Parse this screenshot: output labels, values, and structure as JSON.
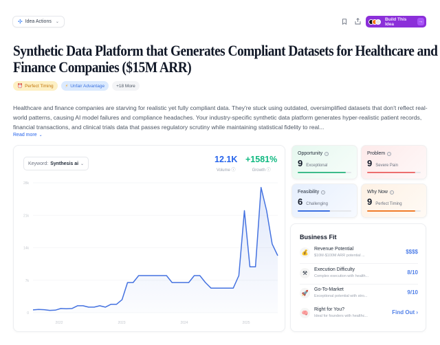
{
  "topbar": {
    "idea_actions_label": "Idea Actions",
    "build_button_label": "Build This Idea"
  },
  "title": "Synthetic Data Platform that Generates Compliant Datasets for Healthcare and Finance Companies ($15M ARR)",
  "tags": [
    {
      "icon": "alarm-clock-icon",
      "label": "Perfect Timing"
    },
    {
      "icon": "lightning-icon",
      "label": "Unfair Advantage"
    },
    {
      "label": "+18 More"
    }
  ],
  "description": "Healthcare and finance companies are starving for realistic yet fully compliant data. They're stuck using outdated, oversimplified datasets that don't reflect real-world patterns, causing AI model failures and compliance headaches. Your industry-specific synthetic data platform generates hyper-realistic patient records, financial transactions, and clinical trials data that passes regulatory scrutiny while maintaining statistical fidelity to real...",
  "read_more_label": "Read more",
  "trend": {
    "keyword_label": "Keyword:",
    "keyword_value": "Synthesis ai",
    "volume_value": "12.1K",
    "volume_label": "Volume",
    "growth_value": "+1581%",
    "growth_label": "Growth",
    "colors": {
      "volume": "#2563eb",
      "growth": "#10b981",
      "line": "#4472e0"
    }
  },
  "chart_data": {
    "type": "area",
    "title": "Search trend for \"Synthesis ai\"",
    "xlabel": "",
    "ylabel": "",
    "ylim": [
      0,
      28000
    ],
    "yticks": [
      "0",
      "7k",
      "14k",
      "21k",
      "28k"
    ],
    "xticks": [
      "2022",
      "2023",
      "2024",
      "2025"
    ],
    "grid": true,
    "legend": "none",
    "values": [
      600,
      700,
      650,
      500,
      550,
      900,
      850,
      900,
      1500,
      1500,
      1200,
      1200,
      1500,
      1200,
      1800,
      1800,
      2800,
      6500,
      6500,
      8000,
      8000,
      8000,
      8000,
      8000,
      8000,
      6500,
      6500,
      6500,
      6500,
      8000,
      8000,
      6500,
      5300,
      5300,
      5300,
      5300,
      5300,
      8000,
      22000,
      9900,
      9900,
      27000,
      22000,
      14800,
      12300
    ]
  },
  "scores": [
    {
      "name": "Opportunity",
      "value": "9",
      "label": "Exceptional",
      "fill_pct": 90,
      "color": "#3dbb8a"
    },
    {
      "name": "Problem",
      "value": "9",
      "label": "Severe Pain",
      "fill_pct": 90,
      "color": "#ec6f6f"
    },
    {
      "name": "Feasibility",
      "value": "6",
      "label": "Challenging",
      "fill_pct": 60,
      "color": "#3b6fe0"
    },
    {
      "name": "Why Now",
      "value": "9",
      "label": "Perfect Timing",
      "fill_pct": 90,
      "color": "#f07c2a"
    }
  ],
  "business_fit": {
    "title": "Business Fit",
    "rows": [
      {
        "icon": "money-bag-icon",
        "title": "Revenue Potential",
        "subtitle": "$10M-$100M ARR potential ...",
        "value": "$$$$"
      },
      {
        "icon": "tools-icon",
        "title": "Execution Difficulty",
        "subtitle": "Complex execution with health...",
        "value": "8/10"
      },
      {
        "icon": "rocket-icon",
        "title": "Go-To-Market",
        "subtitle": "Exceptional potential with stro...",
        "value": "9/10"
      },
      {
        "icon": "brain-icon",
        "title": "Right for You?",
        "subtitle": "Ideal for founders with healthc...",
        "value": "Find Out ›"
      }
    ]
  }
}
